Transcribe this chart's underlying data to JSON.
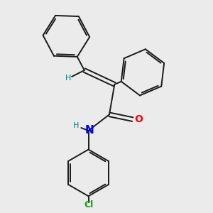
{
  "background_color": "#ebebeb",
  "bond_color": "#1a1a1a",
  "atom_colors": {
    "N": "#0000ff",
    "O": "#ff0000",
    "Cl": "#00aa00",
    "H_vinyl": "#008080",
    "H_amide": "#008080"
  },
  "bond_width": 1.4,
  "dbo": 0.045,
  "figsize": [
    3.0,
    3.0
  ],
  "dpi": 100
}
